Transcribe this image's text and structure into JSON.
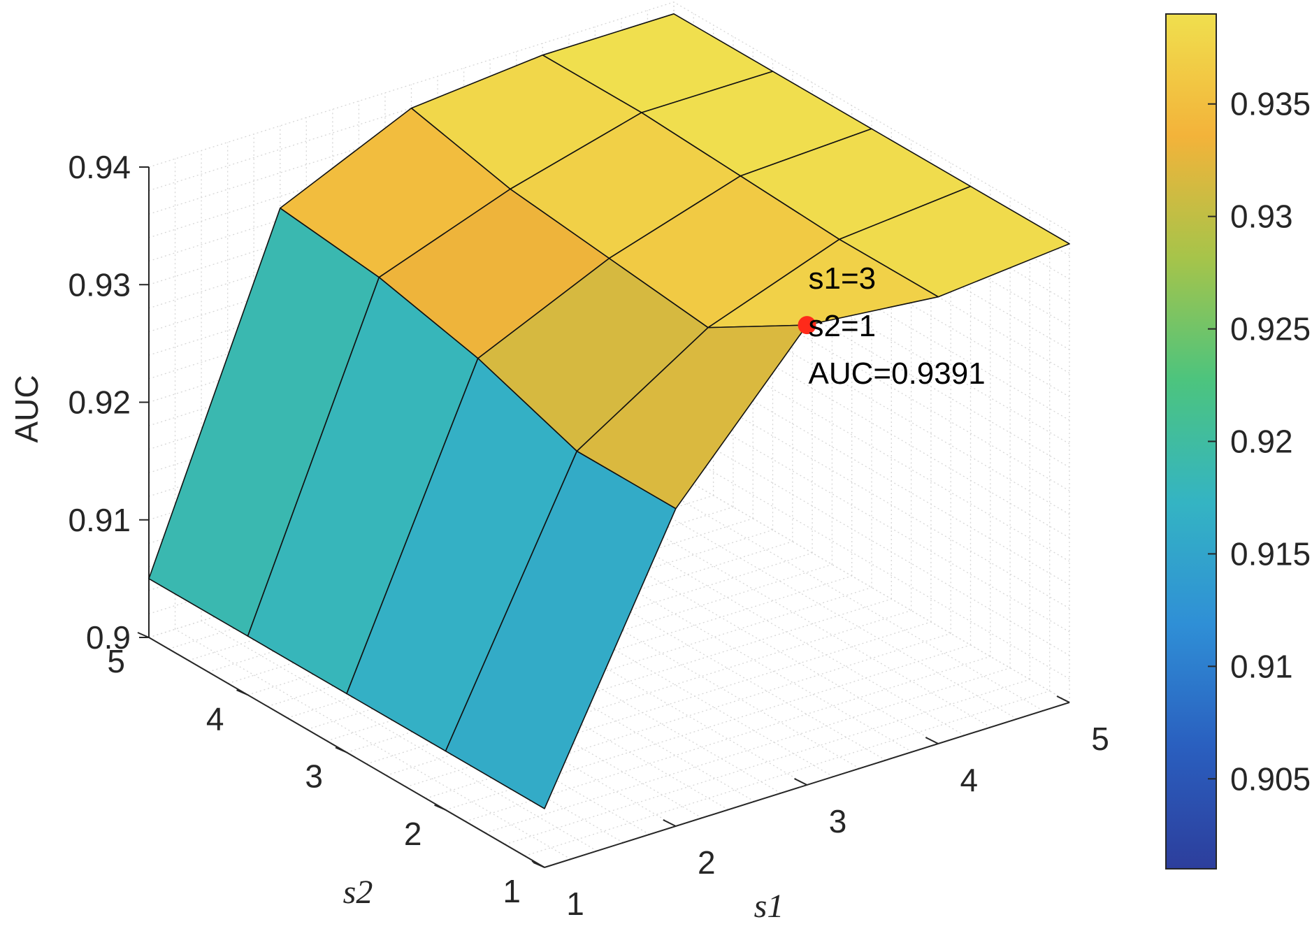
{
  "chart_data": {
    "type": "surface",
    "title": "",
    "xlabel": "s1",
    "ylabel": "s2",
    "zlabel": "AUC",
    "x": [
      1,
      2,
      3,
      4,
      5
    ],
    "y": [
      1,
      2,
      3,
      4,
      5
    ],
    "xticks": [
      "1",
      "2",
      "3",
      "4",
      "5"
    ],
    "yticks": [
      "1",
      "2",
      "3",
      "4",
      "5"
    ],
    "zticks": [
      "0.9",
      "0.91",
      "0.92",
      "0.93",
      "0.94"
    ],
    "zlim": [
      0.9,
      0.94
    ],
    "grid": "on",
    "colormap": "parula",
    "colorbar": {
      "range": [
        0.901,
        0.939
      ],
      "ticks": [
        "0.905",
        "0.91",
        "0.915",
        "0.92",
        "0.925",
        "0.93",
        "0.935"
      ],
      "colors": [
        "#2d3e9c",
        "#2a5fbf",
        "#2f8fd6",
        "#34b4c3",
        "#4cc47e",
        "#a6c44a",
        "#f3b33a",
        "#f0df4e"
      ]
    },
    "z": [
      [
        0.905,
        0.905,
        0.905,
        0.905,
        0.905
      ],
      [
        0.927,
        0.927,
        0.93,
        0.932,
        0.933
      ],
      [
        0.9391,
        0.934,
        0.935,
        0.936,
        0.938
      ],
      [
        0.938,
        0.938,
        0.9385,
        0.939,
        0.939
      ],
      [
        0.939,
        0.939,
        0.939,
        0.939,
        0.939
      ]
    ],
    "annotations": [
      {
        "x": 3,
        "y": 1,
        "z": 0.9391,
        "lines": [
          "s1=3",
          "s2=1",
          "AUC=0.9391"
        ],
        "marker_color": "#ff2a1a"
      }
    ]
  }
}
